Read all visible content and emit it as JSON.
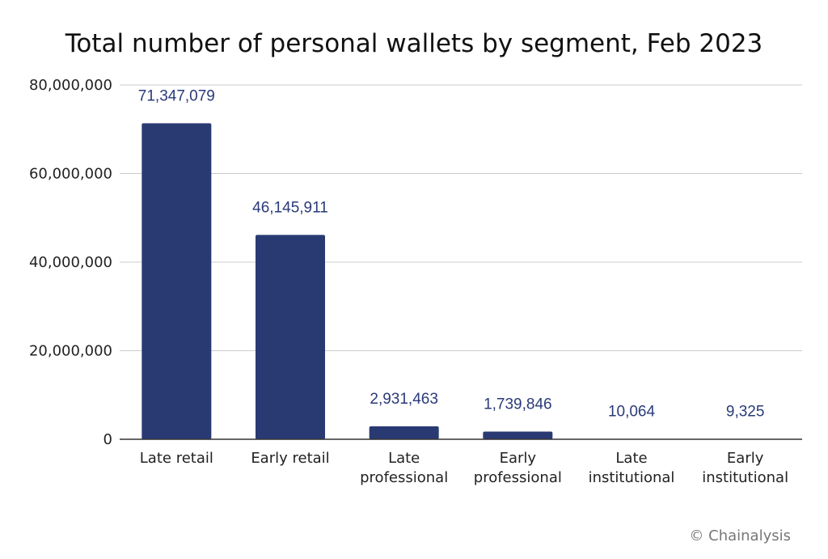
{
  "chart_data": {
    "type": "bar",
    "title": "Total number of personal wallets by segment, Feb 2023",
    "xlabel": "",
    "ylabel": "",
    "categories": [
      [
        "Late retail"
      ],
      [
        "Early retail"
      ],
      [
        "Late",
        "professional"
      ],
      [
        "Early",
        "professional"
      ],
      [
        "Late",
        "institutional"
      ],
      [
        "Early",
        "institutional"
      ]
    ],
    "values": [
      71347079,
      46145911,
      2931463,
      1739846,
      10064,
      9325
    ],
    "data_labels": [
      "71,347,079",
      "46,145,911",
      "2,931,463",
      "1,739,846",
      "10,064",
      "9,325"
    ],
    "ylim": [
      0,
      80000000
    ],
    "yticks": [
      0,
      20000000,
      40000000,
      60000000,
      80000000
    ],
    "ytick_labels": [
      "0",
      "20,000,000",
      "40,000,000",
      "60,000,000",
      "80,000,000"
    ],
    "grid": true,
    "legend": "none",
    "bar_color": "#293a73",
    "label_color": "#2a3a78"
  },
  "credit": "© Chainalysis"
}
